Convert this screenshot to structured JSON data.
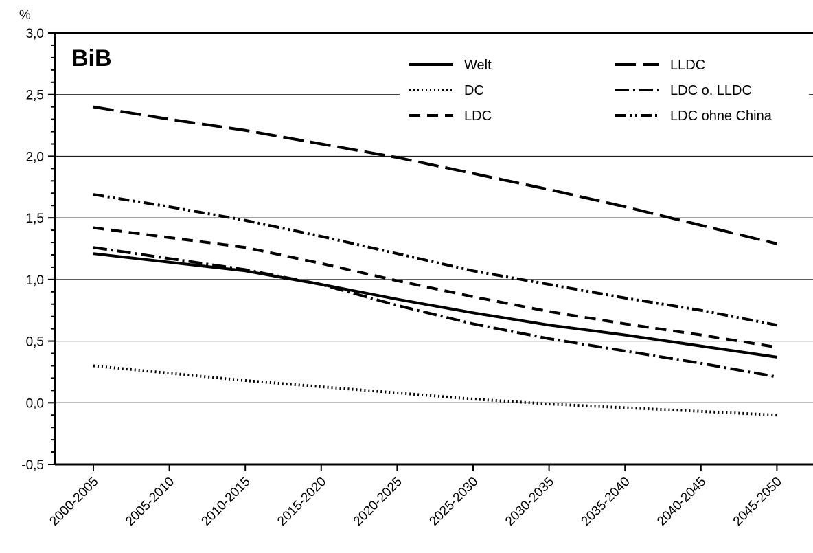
{
  "chart_data": {
    "type": "line",
    "watermark": "BiB",
    "ylabel": "%",
    "xlabel": "",
    "ylim": [
      -0.5,
      3.0
    ],
    "yticks": [
      "-0,5",
      "0,0",
      "0,5",
      "1,0",
      "1,5",
      "2,0",
      "2,5",
      "3,0"
    ],
    "categories": [
      "2000-2005",
      "2005-2010",
      "2010-2015",
      "2015-2020",
      "2020-2025",
      "2025-2030",
      "2030-2035",
      "2035-2040",
      "2040-2045",
      "2045-2050"
    ],
    "grid": "horizontal",
    "legend_position": "top-right",
    "series": [
      {
        "name": "Welt",
        "dash": "solid",
        "values": [
          1.21,
          1.14,
          1.07,
          0.96,
          0.84,
          0.73,
          0.63,
          0.55,
          0.46,
          0.37
        ]
      },
      {
        "name": "DC",
        "dash": "dotted",
        "values": [
          0.3,
          0.24,
          0.18,
          0.13,
          0.08,
          0.03,
          -0.01,
          -0.04,
          -0.07,
          -0.1
        ]
      },
      {
        "name": "LDC",
        "dash": "dashed",
        "values": [
          1.42,
          1.34,
          1.26,
          1.13,
          0.99,
          0.86,
          0.74,
          0.64,
          0.55,
          0.45
        ]
      },
      {
        "name": "LLDC",
        "dash": "long-dashed",
        "values": [
          2.4,
          2.3,
          2.21,
          2.1,
          1.99,
          1.86,
          1.73,
          1.59,
          1.44,
          1.29
        ]
      },
      {
        "name": "LDC o. LLDC",
        "dash": "dash-dot",
        "values": [
          1.26,
          1.17,
          1.08,
          0.96,
          0.79,
          0.64,
          0.52,
          0.42,
          0.32,
          0.21
        ]
      },
      {
        "name": "LDC ohne China",
        "dash": "dash-dot-dot",
        "values": [
          1.69,
          1.59,
          1.48,
          1.35,
          1.21,
          1.07,
          0.96,
          0.85,
          0.75,
          0.63
        ]
      }
    ]
  }
}
